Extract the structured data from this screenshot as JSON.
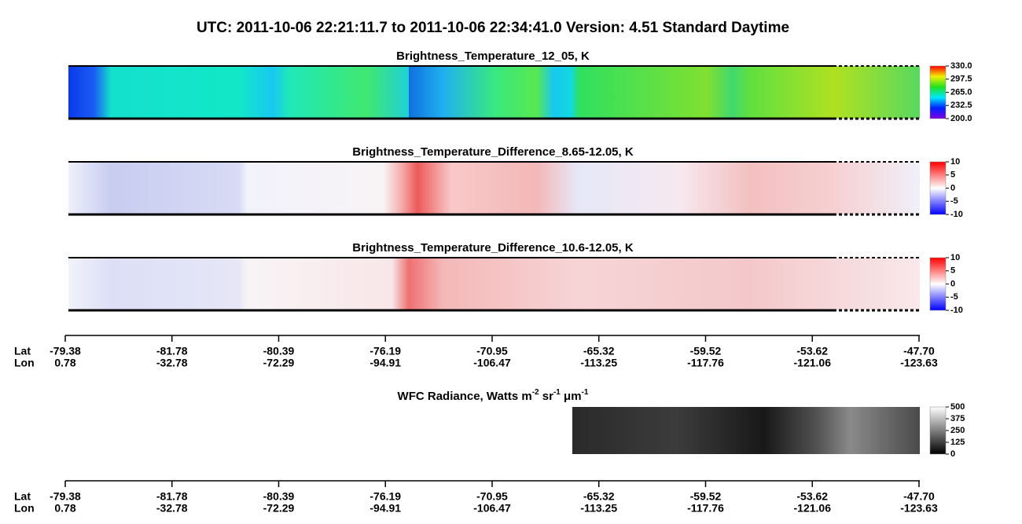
{
  "title": "UTC:  2011-10-06   22:21:11.7  to  2011-10-06   22:34:41.0    Version: 4.51  Standard Daytime",
  "panels": [
    {
      "title": "Brightness_Temperature_12_05, K",
      "colorbar_ticks": [
        "330.0",
        "297.5",
        "265.0",
        "232.5",
        "200.0"
      ]
    },
    {
      "title": "Brightness_Temperature_Difference_8.65-12.05, K",
      "colorbar_ticks": [
        "10",
        "5",
        "0",
        "-5",
        "-10"
      ]
    },
    {
      "title": "Brightness_Temperature_Difference_10.6-12.05, K",
      "colorbar_ticks": [
        "10",
        "5",
        "0",
        "-5",
        "-10"
      ]
    }
  ],
  "wfc": {
    "title": [
      "WFC Radiance, Watts m",
      "-2",
      " sr",
      "-1",
      " μm",
      "-1"
    ],
    "colorbar_ticks": [
      "500",
      "375",
      "250",
      "125",
      "0"
    ]
  },
  "axes": [
    {
      "lat_label": "Lat",
      "lon_label": "Lon",
      "lat": [
        "-79.38",
        "-81.78",
        "-80.39",
        "-76.19",
        "-70.95",
        "-65.32",
        "-59.52",
        "-53.62",
        "-47.70"
      ],
      "lon": [
        "0.78",
        "-32.78",
        "-72.29",
        "-94.91",
        "-106.47",
        "-113.25",
        "-117.76",
        "-121.06",
        "-123.63"
      ]
    },
    {
      "lat_label": "Lat",
      "lon_label": "Lon",
      "lat": [
        "-79.38",
        "-81.78",
        "-80.39",
        "-76.19",
        "-70.95",
        "-65.32",
        "-59.52",
        "-53.62",
        "-47.70"
      ],
      "lon": [
        "0.78",
        "-32.78",
        "-72.29",
        "-94.91",
        "-106.47",
        "-113.25",
        "-117.76",
        "-121.06",
        "-123.63"
      ]
    }
  ]
}
